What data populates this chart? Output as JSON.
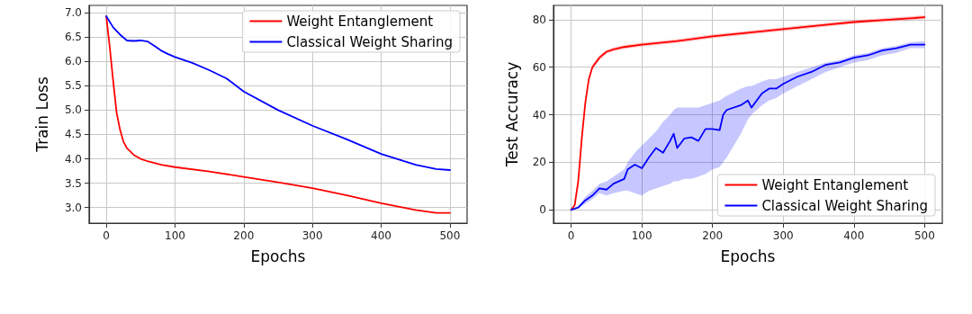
{
  "chart_data": [
    {
      "type": "line",
      "xlabel": "Epochs",
      "ylabel": "Train Loss",
      "xlim": [
        -25,
        525
      ],
      "ylim": [
        2.68,
        7.15
      ],
      "xticks": [
        0,
        100,
        200,
        300,
        400,
        500
      ],
      "yticks": [
        {
          "value": 3.0,
          "label": "3.0"
        },
        {
          "value": 3.5,
          "label": "3.5"
        },
        {
          "value": 4.0,
          "label": "4.0"
        },
        {
          "value": 4.5,
          "label": "4.5"
        },
        {
          "value": 5.0,
          "label": "5.0"
        },
        {
          "value": 5.5,
          "label": "5.5"
        },
        {
          "value": 6.0,
          "label": "6.0"
        },
        {
          "value": 6.5,
          "label": "6.5"
        },
        {
          "value": 7.0,
          "label": "7.0"
        }
      ],
      "grid": true,
      "legend": "top right",
      "marker": "none",
      "line_style": "solid",
      "series": [
        {
          "name": "Weight Entanglement",
          "color": "#ff0000",
          "x": [
            0,
            5,
            10,
            15,
            20,
            25,
            30,
            40,
            50,
            60,
            80,
            100,
            150,
            200,
            250,
            300,
            350,
            400,
            450,
            480,
            500
          ],
          "values": [
            6.92,
            6.3,
            5.6,
            4.95,
            4.6,
            4.35,
            4.22,
            4.08,
            4.0,
            3.95,
            3.88,
            3.83,
            3.74,
            3.63,
            3.52,
            3.4,
            3.25,
            3.09,
            2.95,
            2.89,
            2.89
          ]
        },
        {
          "name": "Classical Weight Sharing",
          "color": "#0000ff",
          "x": [
            0,
            10,
            20,
            30,
            40,
            50,
            60,
            70,
            80,
            90,
            100,
            125,
            150,
            175,
            200,
            250,
            300,
            350,
            400,
            450,
            480,
            500
          ],
          "values": [
            6.93,
            6.7,
            6.55,
            6.43,
            6.42,
            6.43,
            6.41,
            6.32,
            6.22,
            6.15,
            6.09,
            5.97,
            5.82,
            5.65,
            5.38,
            5.0,
            4.68,
            4.4,
            4.1,
            3.88,
            3.79,
            3.77
          ]
        }
      ]
    },
    {
      "type": "line",
      "xlabel": "Epochs",
      "ylabel": "Test Accuracy",
      "xlim": [
        -25,
        525
      ],
      "ylim": [
        -5.6,
        86
      ],
      "xticks": [
        0,
        100,
        200,
        300,
        400,
        500
      ],
      "yticks": [
        0,
        20,
        40,
        60,
        80
      ],
      "grid": true,
      "legend": "bottom right",
      "marker": "none",
      "line_style": "solid",
      "series": [
        {
          "name": "Weight Entanglement",
          "color": "#ff0000",
          "x": [
            0,
            5,
            10,
            15,
            20,
            25,
            30,
            40,
            50,
            60,
            75,
            100,
            150,
            200,
            250,
            300,
            350,
            400,
            450,
            500
          ],
          "values": [
            0,
            2,
            12,
            30,
            45,
            55,
            60,
            64,
            66.5,
            67.5,
            68.5,
            69.5,
            71,
            73,
            74.5,
            76,
            77.5,
            79,
            80,
            81
          ],
          "lower": [
            0,
            1.5,
            11,
            29,
            44,
            54,
            59,
            63,
            65.7,
            66.7,
            67.7,
            68.7,
            70.2,
            72.2,
            73.7,
            75.2,
            76.7,
            78.2,
            79.2,
            80.2
          ],
          "upper": [
            0,
            2.5,
            13,
            31,
            46,
            56,
            61,
            65,
            67.3,
            68.3,
            69.3,
            70.3,
            71.8,
            73.8,
            75.3,
            76.8,
            78.3,
            79.8,
            80.8,
            81.8
          ]
        },
        {
          "name": "Classical Weight Sharing",
          "color": "#0000ff",
          "x": [
            0,
            10,
            20,
            30,
            40,
            50,
            60,
            75,
            80,
            90,
            100,
            110,
            120,
            130,
            140,
            145,
            150,
            160,
            170,
            180,
            190,
            200,
            210,
            215,
            220,
            240,
            250,
            255,
            270,
            280,
            290,
            300,
            320,
            340,
            360,
            380,
            400,
            420,
            440,
            460,
            480,
            500
          ],
          "values": [
            0,
            1,
            4,
            6,
            9,
            8.5,
            11,
            13,
            17,
            19,
            17.5,
            22,
            26,
            24,
            29,
            32,
            26,
            30,
            30.5,
            29,
            34,
            34,
            33.5,
            40,
            42,
            44,
            46,
            43,
            49,
            51,
            51,
            53,
            56,
            58,
            61,
            62,
            64,
            65,
            67,
            68,
            69.5,
            69.5
          ],
          "lower": [
            0,
            0.5,
            2.5,
            4.5,
            7,
            6,
            7,
            8,
            8,
            7,
            6,
            8,
            9,
            10,
            11,
            12,
            12,
            13,
            13,
            14,
            15,
            17,
            18,
            20,
            22,
            32,
            38,
            40,
            44,
            46,
            47,
            49,
            52,
            55,
            58,
            60,
            62,
            63,
            65,
            66,
            68,
            68
          ],
          "upper": [
            0,
            1.5,
            5.5,
            8,
            11,
            12,
            14,
            17,
            20,
            24,
            27,
            30,
            33,
            37,
            40,
            42,
            43,
            43,
            43,
            43,
            44,
            45,
            46,
            47,
            48,
            51,
            52,
            52,
            54,
            55,
            55,
            56,
            58,
            60,
            62,
            63,
            65,
            66,
            68,
            69,
            70.5,
            71
          ]
        }
      ]
    }
  ]
}
